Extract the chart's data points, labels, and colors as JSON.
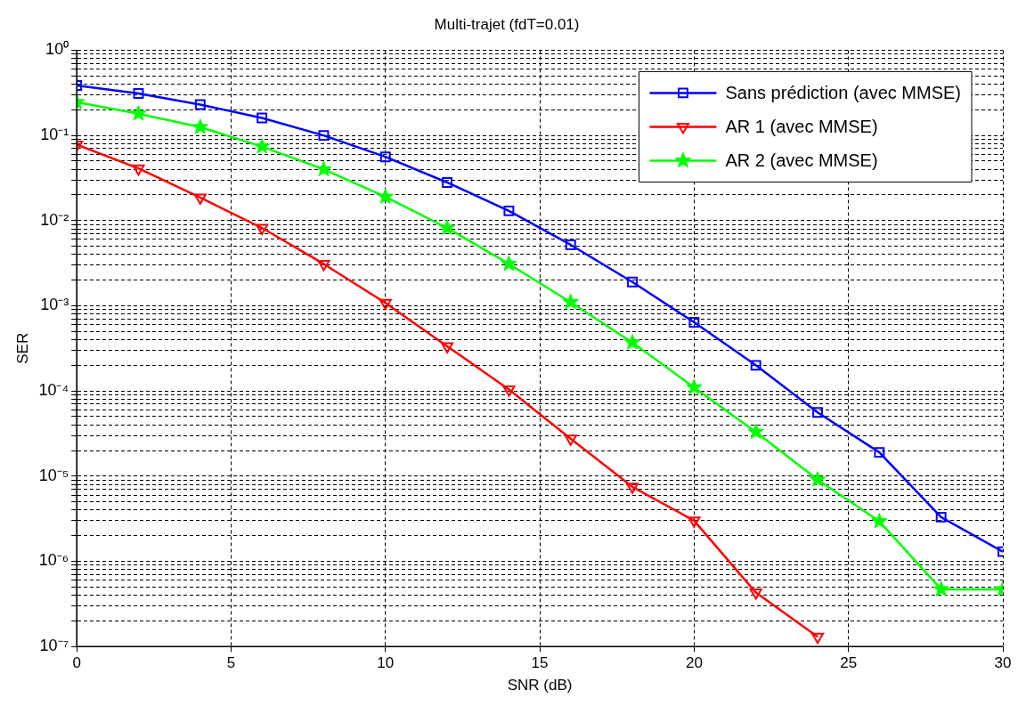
{
  "chart_data": {
    "type": "line",
    "title": "Multi-trajet (fdT=0.01)",
    "xlabel": "SNR (dB)",
    "ylabel": "SER",
    "x": [
      0,
      2,
      4,
      6,
      8,
      10,
      12,
      14,
      16,
      18,
      20,
      22,
      24,
      26,
      28,
      30
    ],
    "series": [
      {
        "name": "Sans prédiction (avec MMSE)",
        "color": "#0000ff",
        "marker": "square",
        "values": [
          0.385,
          0.31,
          0.23,
          0.16,
          0.1,
          0.056,
          0.028,
          0.013,
          0.0052,
          0.0019,
          0.00064,
          0.0002,
          5.6e-05,
          1.9e-05,
          3.3e-06,
          1.3e-06
        ]
      },
      {
        "name": "AR 1 (avec MMSE)",
        "color": "#ff0000",
        "marker": "triangle",
        "values": [
          0.078,
          0.041,
          0.0186,
          0.0082,
          0.0031,
          0.00108,
          0.000335,
          0.000104,
          2.75e-05,
          7.5e-06,
          3e-06,
          4.3e-07,
          1.3e-07,
          null,
          null,
          null
        ]
      },
      {
        "name": "AR 2 (avec MMSE)",
        "color": "#00ff00",
        "marker": "star",
        "values": [
          0.245,
          0.18,
          0.125,
          0.074,
          0.04,
          0.019,
          0.0082,
          0.0031,
          0.0011,
          0.00037,
          0.00011,
          3.3e-05,
          9.1e-06,
          2.95e-06,
          4.7e-07,
          4.7e-07
        ]
      }
    ],
    "log": "y",
    "grid": true,
    "legend": "top right",
    "line_style": "solid",
    "xlim": [
      0,
      30
    ],
    "xticks": [
      0,
      5,
      10,
      15,
      20,
      25,
      30
    ],
    "ylim": [
      1e-07,
      1
    ],
    "yticks": [
      {
        "value": 1e-07,
        "label": "10⁻⁷"
      },
      {
        "value": 2e-07,
        "label": null
      },
      {
        "value": 3e-07,
        "label": null
      },
      {
        "value": 4e-07,
        "label": null
      },
      {
        "value": 5e-07,
        "label": null
      },
      {
        "value": 6e-07,
        "label": null
      },
      {
        "value": 7e-07,
        "label": null
      },
      {
        "value": 8e-07,
        "label": null
      },
      {
        "value": 9e-07,
        "label": null
      },
      {
        "value": 1e-06,
        "label": "10⁻⁶"
      },
      {
        "value": 2e-06,
        "label": null
      },
      {
        "value": 3e-06,
        "label": null
      },
      {
        "value": 4e-06,
        "label": null
      },
      {
        "value": 5e-06,
        "label": null
      },
      {
        "value": 6e-06,
        "label": null
      },
      {
        "value": 7e-06,
        "label": null
      },
      {
        "value": 8e-06,
        "label": null
      },
      {
        "value": 9e-06,
        "label": null
      },
      {
        "value": 1e-05,
        "label": "10⁻⁵"
      },
      {
        "value": 2e-05,
        "label": null
      },
      {
        "value": 3e-05,
        "label": null
      },
      {
        "value": 4e-05,
        "label": null
      },
      {
        "value": 5e-05,
        "label": null
      },
      {
        "value": 6e-05,
        "label": null
      },
      {
        "value": 7e-05,
        "label": null
      },
      {
        "value": 8e-05,
        "label": null
      },
      {
        "value": 9e-05,
        "label": null
      },
      {
        "value": 0.0001,
        "label": "10⁻⁴"
      },
      {
        "value": 0.0002,
        "label": null
      },
      {
        "value": 0.0003,
        "label": null
      },
      {
        "value": 0.0004,
        "label": null
      },
      {
        "value": 0.0005,
        "label": null
      },
      {
        "value": 0.0006,
        "label": null
      },
      {
        "value": 0.0007,
        "label": null
      },
      {
        "value": 0.0008,
        "label": null
      },
      {
        "value": 0.0009,
        "label": null
      },
      {
        "value": 0.001,
        "label": "10⁻³"
      },
      {
        "value": 0.002,
        "label": null
      },
      {
        "value": 0.003,
        "label": null
      },
      {
        "value": 0.004,
        "label": null
      },
      {
        "value": 0.005,
        "label": null
      },
      {
        "value": 0.006,
        "label": null
      },
      {
        "value": 0.007,
        "label": null
      },
      {
        "value": 0.008,
        "label": null
      },
      {
        "value": 0.009,
        "label": null
      },
      {
        "value": 0.01,
        "label": "10⁻²"
      },
      {
        "value": 0.02,
        "label": null
      },
      {
        "value": 0.03,
        "label": null
      },
      {
        "value": 0.04,
        "label": null
      },
      {
        "value": 0.05,
        "label": null
      },
      {
        "value": 0.06,
        "label": null
      },
      {
        "value": 0.07,
        "label": null
      },
      {
        "value": 0.08,
        "label": null
      },
      {
        "value": 0.09,
        "label": null
      },
      {
        "value": 0.1,
        "label": "10⁻¹"
      },
      {
        "value": 0.2,
        "label": null
      },
      {
        "value": 0.3,
        "label": null
      },
      {
        "value": 0.4,
        "label": null
      },
      {
        "value": 0.5,
        "label": null
      },
      {
        "value": 0.6,
        "label": null
      },
      {
        "value": 0.7,
        "label": null
      },
      {
        "value": 0.8,
        "label": null
      },
      {
        "value": 0.9,
        "label": null
      },
      {
        "value": 1,
        "label": "10⁰"
      }
    ]
  }
}
